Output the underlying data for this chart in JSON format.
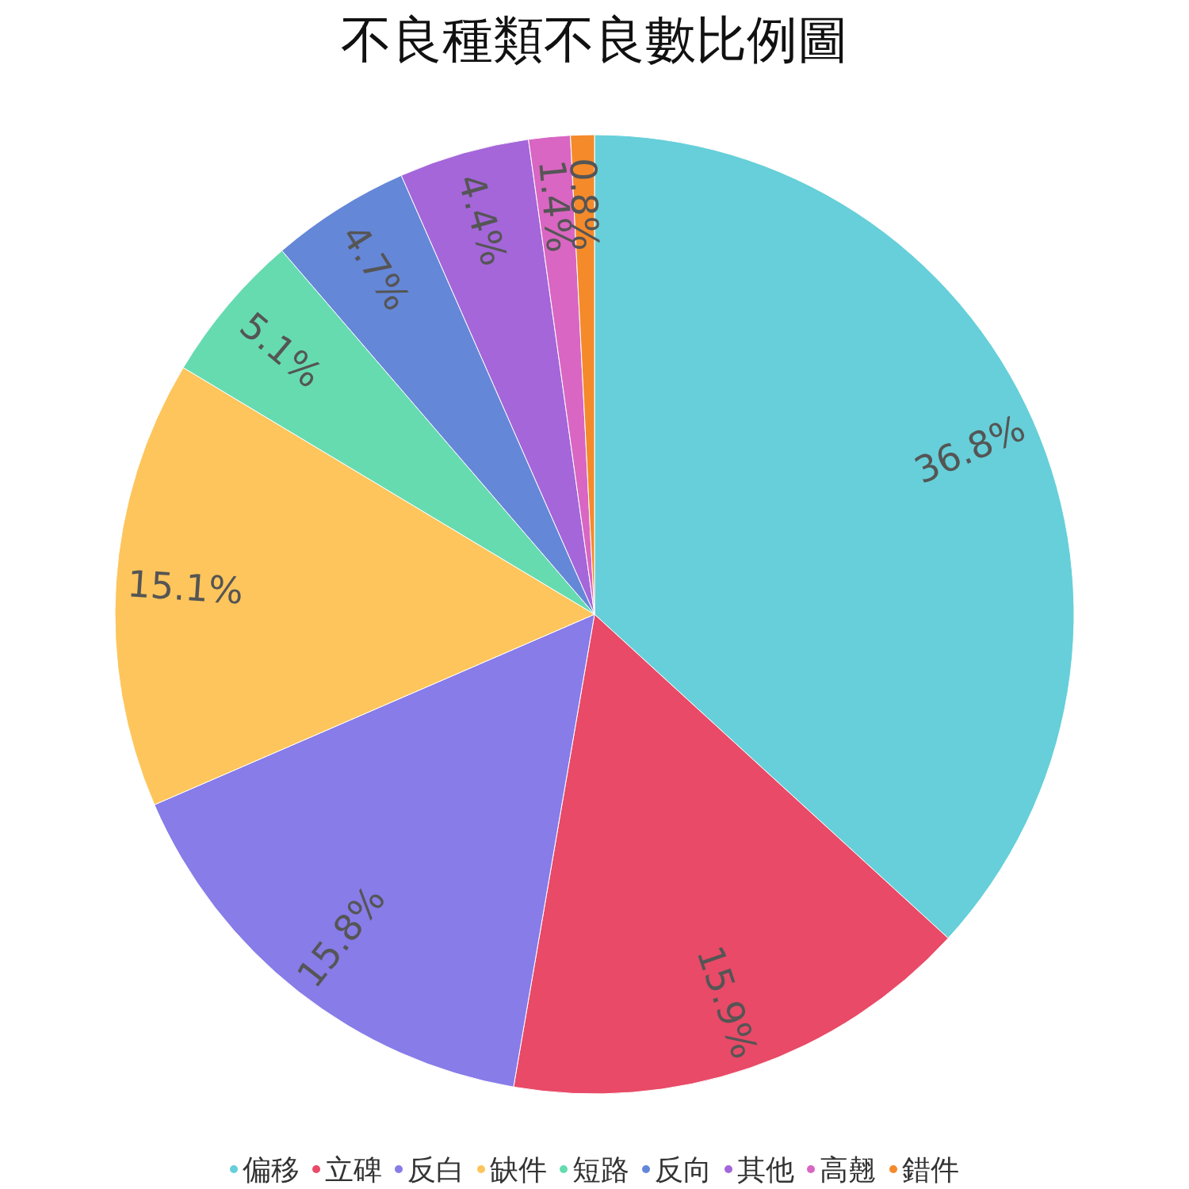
{
  "chart_data": {
    "type": "pie",
    "title": "不良種類不良數比例圖",
    "categories": [
      "偏移",
      "立碑",
      "反白",
      "缺件",
      "短路",
      "反向",
      "其他",
      "高翹",
      "錯件"
    ],
    "values": [
      36.8,
      15.9,
      15.8,
      15.1,
      5.1,
      4.7,
      4.4,
      1.4,
      0.8
    ],
    "colors": [
      "#66cfd9",
      "#e84a67",
      "#877ce8",
      "#fdc55b",
      "#66dbb0",
      "#6587d8",
      "#a466d9",
      "#d966c2",
      "#f58a2a"
    ],
    "value_labels": [
      "36.8%",
      "15.9%",
      "15.8%",
      "15.1%",
      "5.1%",
      "4.7%",
      "4.4%",
      "1.4%",
      "0.8%"
    ],
    "legend": "bottom"
  }
}
